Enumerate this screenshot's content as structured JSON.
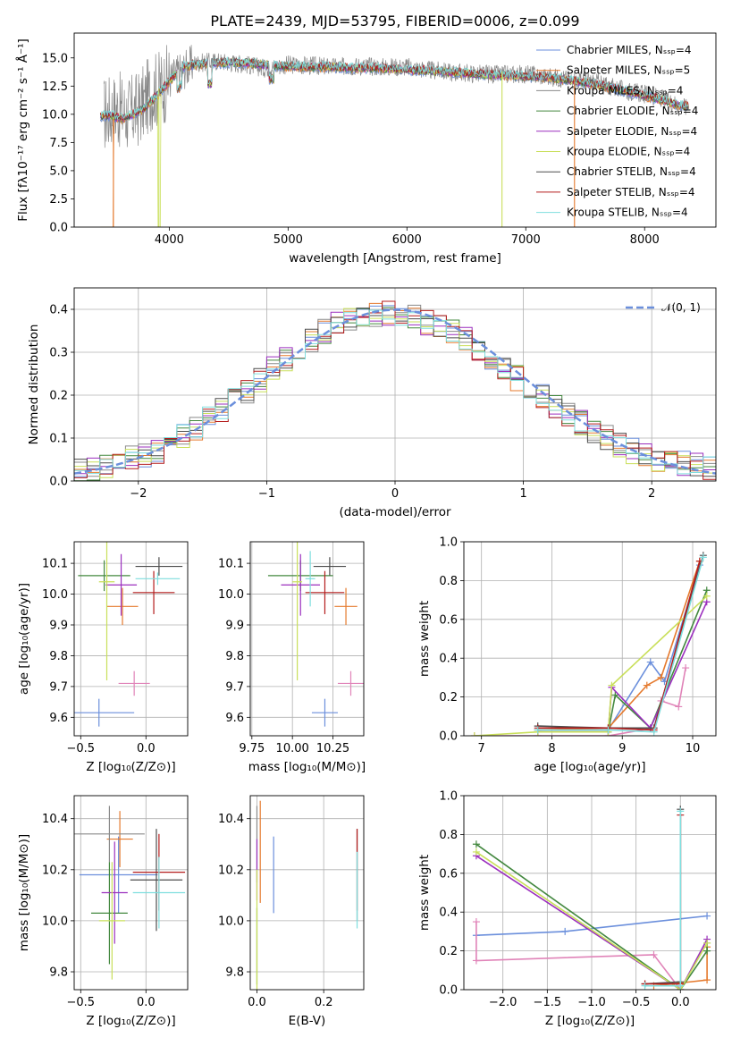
{
  "title": "PLATE=2439, MJD=53795, FIBERID=0006, z=0.099",
  "colors": [
    "#6b8fdc",
    "#e57a2e",
    "#8a8a8a",
    "#43883f",
    "#9b2fbe",
    "#c9df5a",
    "#4d4d4d",
    "#b41c1c",
    "#7fdede"
  ],
  "flux_color": "#888888",
  "pink_color": "#e083b8",
  "panels": {
    "spectrum": {
      "xlabel": "wavelength [Angstrom, rest frame]",
      "ylabel": "Flux [fλ10⁻¹⁷ erg cm⁻² s⁻¹ Å⁻¹]",
      "xlim": [
        3200,
        8600
      ],
      "ylim": [
        0,
        17.2
      ],
      "xticks": [
        "4000",
        "5000",
        "6000",
        "7000",
        "8000"
      ],
      "yticks": [
        "0.0",
        "2.5",
        "5.0",
        "7.5",
        "10.0",
        "12.5",
        "15.0"
      ],
      "legend": [
        "Chabrier MILES, Nₛₛₚ=4",
        "Salpeter MILES, Nₛₛₚ=5",
        "Kroupa MILES, Nₛₛₚ=4",
        "Chabrier ELODIE, Nₛₛₚ=4",
        "Salpeter ELODIE, Nₛₛₚ=4",
        "Kroupa ELODIE, Nₛₛₚ=4",
        "Chabrier STELIB, Nₛₛₚ=4",
        "Salpeter STELIB, Nₛₛₚ=4",
        "Kroupa STELIB, Nₛₛₚ=4"
      ]
    },
    "residual": {
      "xlabel": "(data-model)/error",
      "ylabel": "Normed distribution",
      "xlim": [
        -2.5,
        2.5
      ],
      "ylim": [
        0,
        0.45
      ],
      "xticks": [
        "−2",
        "−1",
        "0",
        "1",
        "2"
      ],
      "yticks": [
        "0.0",
        "0.1",
        "0.2",
        "0.3",
        "0.4"
      ],
      "legend": "𝒩(0, 1)"
    },
    "z_age": {
      "xlabel": "Z [log₁₀(Z/Z⊙)]",
      "ylabel": "age  [log₁₀(age/yr)]",
      "xlim": [
        -0.55,
        0.32
      ],
      "ylim": [
        9.54,
        10.17
      ],
      "xticks": [
        "−0.5",
        "0.0"
      ],
      "yticks": [
        "9.6",
        "9.7",
        "9.8",
        "9.9",
        "10.0",
        "10.1"
      ]
    },
    "mass_age": {
      "xlabel": "mass [log₁₀(M/M⊙)]",
      "ylabel": "",
      "xlim": [
        9.74,
        10.44
      ],
      "ylim": [
        9.54,
        10.17
      ],
      "xticks": [
        "9.75",
        "10.00",
        "10.25"
      ],
      "yticks": [
        "9.6",
        "9.7",
        "9.8",
        "9.9",
        "10.0",
        "10.1"
      ]
    },
    "age_weight": {
      "xlabel": "age  [log₁₀(age/yr)]",
      "ylabel": "mass weight",
      "xlim": [
        6.75,
        10.33
      ],
      "ylim": [
        0,
        1.0
      ],
      "xticks": [
        "7",
        "8",
        "9",
        "10"
      ],
      "yticks": [
        "0.0",
        "0.2",
        "0.4",
        "0.6",
        "0.8",
        "1.0"
      ]
    },
    "z_mass": {
      "xlabel": "Z [log₁₀(Z/Z⊙)]",
      "ylabel": "mass [log₁₀(M/M⊙)]",
      "xlim": [
        -0.55,
        0.32
      ],
      "ylim": [
        9.73,
        10.49
      ],
      "xticks": [
        "−0.5",
        "0.0"
      ],
      "yticks": [
        "9.8",
        "10.0",
        "10.2",
        "10.4"
      ]
    },
    "ebv_mass": {
      "xlabel": "E(B-V)",
      "ylabel": "",
      "xlim": [
        -0.02,
        0.32
      ],
      "ylim": [
        9.73,
        10.49
      ],
      "xticks": [
        "0.0",
        "0.2"
      ],
      "yticks": [
        "9.8",
        "10.0",
        "10.2",
        "10.4"
      ]
    },
    "z_weight": {
      "xlabel": "Z [log₁₀(Z/Z⊙)]",
      "ylabel": "mass weight",
      "xlim": [
        -2.44,
        0.4
      ],
      "ylim": [
        0,
        1.0
      ],
      "xticks": [
        "−2.0",
        "−1.5",
        "−1.0",
        "−0.5",
        "0.0"
      ],
      "yticks": [
        "0.0",
        "0.2",
        "0.4",
        "0.6",
        "0.8",
        "1.0"
      ]
    }
  },
  "chart_data": [
    {
      "type": "line",
      "title": "PLATE=2439, MJD=53795, FIBERID=0006, z=0.099",
      "xlabel": "wavelength [Angstrom, rest frame]",
      "ylabel": "Flux [fλ10⁻¹⁷ erg cm⁻² s⁻¹ Å⁻¹]",
      "xlim": [
        3200,
        8600
      ],
      "ylim": [
        0,
        17.2
      ],
      "observed": {
        "wavelength": [
          3450,
          3550,
          3650,
          3750,
          3850,
          3950,
          4050,
          4200,
          4400,
          4600,
          4800,
          5000,
          5200,
          5400,
          5600,
          5800,
          6000,
          6200,
          6400,
          6600,
          6800,
          7000,
          7200,
          7400,
          7600,
          7800,
          8000,
          8200,
          8350
        ],
        "flux": [
          10.0,
          10.5,
          10.0,
          10.5,
          12.0,
          12.5,
          13.5,
          14.5,
          14.7,
          14.5,
          14.1,
          14.4,
          14.3,
          14.2,
          14.3,
          14.2,
          14.2,
          13.9,
          13.7,
          13.6,
          13.5,
          13.6,
          13.3,
          13.1,
          12.8,
          12.2,
          11.8,
          11.2,
          10.6
        ]
      },
      "model": {
        "wavelength": [
          3420,
          3500,
          3600,
          3700,
          3800,
          3900,
          4000,
          4100,
          4300,
          4500,
          4700,
          4900,
          5100,
          5300,
          5500,
          5700,
          5900,
          6100,
          6300,
          6500,
          6700,
          6900,
          7100,
          7300,
          7500,
          7700,
          7900,
          8100,
          8300
        ],
        "flux": [
          9.8,
          9.9,
          9.6,
          10.0,
          10.6,
          11.7,
          12.9,
          14.2,
          14.5,
          14.6,
          14.5,
          14.3,
          14.2,
          14.2,
          14.1,
          14.1,
          14.0,
          13.9,
          13.8,
          13.6,
          13.5,
          13.4,
          13.3,
          13.1,
          12.8,
          12.4,
          11.9,
          11.4,
          10.8
        ]
      },
      "series": [
        {
          "name": "Chabrier MILES, Nₛₛₚ=4"
        },
        {
          "name": "Salpeter MILES, Nₛₛₚ=5"
        },
        {
          "name": "Kroupa MILES, Nₛₛₚ=4"
        },
        {
          "name": "Chabrier ELODIE, Nₛₛₚ=4"
        },
        {
          "name": "Salpeter ELODIE, Nₛₛₚ=4"
        },
        {
          "name": "Kroupa ELODIE, Nₛₛₚ=4"
        },
        {
          "name": "Chabrier STELIB, Nₛₛₚ=4"
        },
        {
          "name": "Salpeter STELIB, Nₛₛₚ=4"
        },
        {
          "name": "Kroupa STELIB, Nₛₛₚ=4"
        }
      ]
    },
    {
      "type": "line",
      "xlabel": "(data-model)/error",
      "ylabel": "Normed distribution",
      "xlim": [
        -2.5,
        2.5
      ],
      "ylim": [
        0,
        0.45
      ],
      "bin_edges": [
        -2.5,
        -2.4,
        -2.3,
        -2.2,
        -2.1,
        -2.0,
        -1.9,
        -1.8,
        -1.7,
        -1.6,
        -1.5,
        -1.4,
        -1.3,
        -1.2,
        -1.1,
        -1.0,
        -0.9,
        -0.8,
        -0.7,
        -0.6,
        -0.5,
        -0.4,
        -0.3,
        -0.2,
        -0.1,
        0.0,
        0.1,
        0.2,
        0.3,
        0.4,
        0.5,
        0.6,
        0.7,
        0.8,
        0.9,
        1.0,
        1.1,
        1.2,
        1.3,
        1.4,
        1.5,
        1.6,
        1.7,
        1.8,
        1.9,
        2.0,
        2.1,
        2.2,
        2.3,
        2.4,
        2.5
      ],
      "base_histogram": [
        0.03,
        0.03,
        0.035,
        0.045,
        0.055,
        0.06,
        0.07,
        0.085,
        0.105,
        0.125,
        0.145,
        0.165,
        0.19,
        0.21,
        0.235,
        0.26,
        0.285,
        0.31,
        0.33,
        0.35,
        0.365,
        0.375,
        0.385,
        0.39,
        0.39,
        0.385,
        0.38,
        0.37,
        0.36,
        0.345,
        0.33,
        0.31,
        0.29,
        0.265,
        0.24,
        0.22,
        0.2,
        0.175,
        0.155,
        0.135,
        0.115,
        0.1,
        0.085,
        0.07,
        0.06,
        0.05,
        0.045,
        0.04,
        0.035,
        0.03
      ],
      "series": [
        {
          "name": "𝒩(0, 1)",
          "mu": 0,
          "sigma": 1
        }
      ]
    },
    {
      "type": "scatter",
      "panel": "z_age",
      "points": [
        {
          "x": -0.36,
          "y": 9.615,
          "xerr": 0.27,
          "yerr": 0.045
        },
        {
          "x": -0.18,
          "y": 9.96,
          "xerr": 0.12,
          "yerr": 0.06
        },
        {
          "x": -0.09,
          "y": 9.71,
          "xerr": 0.12,
          "yerr": 0.04
        },
        {
          "x": -0.32,
          "y": 10.06,
          "xerr": 0.2,
          "yerr": 0.05
        },
        {
          "x": -0.19,
          "y": 10.03,
          "xerr": 0.12,
          "yerr": 0.1
        },
        {
          "x": -0.3,
          "y": 10.04,
          "xerr": 0.06,
          "yerr": 0.32
        },
        {
          "x": 0.1,
          "y": 10.09,
          "xerr": 0.18,
          "yerr": 0.03
        },
        {
          "x": 0.06,
          "y": 10.005,
          "xerr": 0.16,
          "yerr": 0.07
        },
        {
          "x": 0.09,
          "y": 10.05,
          "xerr": 0.17,
          "yerr": 0.02
        }
      ]
    },
    {
      "type": "scatter",
      "panel": "mass_age",
      "points": [
        {
          "x": 10.2,
          "y": 9.615,
          "xerr": 0.08,
          "yerr": 0.045
        },
        {
          "x": 10.33,
          "y": 9.96,
          "xerr": 0.07,
          "yerr": 0.06
        },
        {
          "x": 10.36,
          "y": 9.71,
          "xerr": 0.08,
          "yerr": 0.04
        },
        {
          "x": 10.05,
          "y": 10.06,
          "xerr": 0.2,
          "yerr": 0.05
        },
        {
          "x": 10.05,
          "y": 10.03,
          "xerr": 0.12,
          "yerr": 0.1
        },
        {
          "x": 10.03,
          "y": 10.04,
          "xerr": 0.03,
          "yerr": 0.32
        },
        {
          "x": 10.23,
          "y": 10.09,
          "xerr": 0.1,
          "yerr": 0.03
        },
        {
          "x": 10.2,
          "y": 10.005,
          "xerr": 0.12,
          "yerr": 0.07
        },
        {
          "x": 10.11,
          "y": 10.05,
          "xerr": 0.03,
          "yerr": 0.09
        }
      ]
    },
    {
      "type": "line",
      "panel": "age_weight",
      "series": [
        {
          "x": [
            7.8,
            8.8,
            9.4,
            9.6,
            10.1
          ],
          "y": [
            0.03,
            0.03,
            0.38,
            0.28,
            0.88
          ]
        },
        {
          "x": [
            7.8,
            8.8,
            9.35,
            9.55,
            10.1
          ],
          "y": [
            0.03,
            0.04,
            0.26,
            0.3,
            0.9
          ]
        },
        {
          "x": [
            6.9,
            7.8,
            8.8,
            9.45,
            9.55,
            9.8,
            9.9
          ],
          "y": [
            0.0,
            0.0,
            0.0,
            0.04,
            0.18,
            0.15,
            0.35
          ]
        },
        {
          "x": [
            7.8,
            8.8,
            8.9,
            9.4,
            10.2
          ],
          "y": [
            0.02,
            0.02,
            0.21,
            0.04,
            0.75
          ]
        },
        {
          "x": [
            7.8,
            8.8,
            8.85,
            9.4,
            10.2
          ],
          "y": [
            0.02,
            0.02,
            0.25,
            0.04,
            0.69
          ]
        },
        {
          "x": [
            6.9,
            7.8,
            8.8,
            8.85,
            10.2
          ],
          "y": [
            0.0,
            0.02,
            0.02,
            0.26,
            0.72
          ]
        },
        {
          "x": [
            7.8,
            8.8,
            9.45,
            10.15
          ],
          "y": [
            0.05,
            0.04,
            0.04,
            0.93
          ]
        },
        {
          "x": [
            7.8,
            8.8,
            9.45,
            10.1
          ],
          "y": [
            0.04,
            0.04,
            0.03,
            0.9
          ]
        },
        {
          "x": [
            7.8,
            8.8,
            9.45,
            10.15
          ],
          "y": [
            0.03,
            0.03,
            0.02,
            0.92
          ]
        }
      ]
    },
    {
      "type": "scatter",
      "panel": "z_mass",
      "points": [
        {
          "x": -0.21,
          "y": 10.18,
          "xerr": 0.3,
          "yerr": 0.15
        },
        {
          "x": -0.2,
          "y": 10.32,
          "xerr": 0.1,
          "yerr": 0.11
        },
        {
          "x": -0.28,
          "y": 10.34,
          "xerr": 0.27,
          "yerr": 0.11
        },
        {
          "x": -0.28,
          "y": 10.03,
          "xerr": 0.14,
          "yerr": 0.2
        },
        {
          "x": -0.24,
          "y": 10.11,
          "xerr": 0.1,
          "yerr": 0.2
        },
        {
          "x": -0.26,
          "y": 10.0,
          "xerr": 0.1,
          "yerr": 0.23
        },
        {
          "x": 0.08,
          "y": 10.16,
          "xerr": 0.2,
          "yerr": 0.2
        },
        {
          "x": 0.1,
          "y": 10.19,
          "xerr": 0.2,
          "yerr": 0.15
        },
        {
          "x": 0.1,
          "y": 10.11,
          "xerr": 0.2,
          "yerr": 0.14
        }
      ]
    },
    {
      "type": "scatter",
      "panel": "ebv_mass",
      "points": [
        {
          "x": 0.05,
          "y": 10.18,
          "xerr": 0,
          "yerr": 0.15
        },
        {
          "x": 0.01,
          "y": 10.27,
          "xerr": 0,
          "yerr": 0.2
        },
        {
          "x": 0.0,
          "y": 10.3,
          "xerr": 0,
          "yerr": 0.15
        },
        {
          "x": 0.0,
          "y": 9.9,
          "xerr": 0,
          "yerr": 0.15
        },
        {
          "x": 0.0,
          "y": 10.2,
          "xerr": 0,
          "yerr": 0.12
        },
        {
          "x": 0.0,
          "y": 9.95,
          "xerr": 0,
          "yerr": 0.25
        },
        {
          "x": 0.3,
          "y": 10.18,
          "xerr": 0,
          "yerr": 0.18
        },
        {
          "x": 0.3,
          "y": 10.2,
          "xerr": 0,
          "yerr": 0.16
        },
        {
          "x": 0.3,
          "y": 10.12,
          "xerr": 0,
          "yerr": 0.15
        }
      ]
    },
    {
      "type": "line",
      "panel": "z_weight",
      "series": [
        {
          "x": [
            -2.3,
            -1.3,
            0.3
          ],
          "y": [
            0.28,
            0.3,
            0.38
          ]
        },
        {
          "x": [
            -0.3,
            0.3,
            0.3
          ],
          "y": [
            0.02,
            0.05,
            0.22
          ]
        },
        {
          "x": [
            -2.3,
            -2.3,
            -0.3,
            0.0
          ],
          "y": [
            0.35,
            0.15,
            0.18,
            0.0
          ]
        },
        {
          "x": [
            -2.3,
            0.0,
            0.3,
            0.3
          ],
          "y": [
            0.75,
            0.0,
            0.2,
            0.24
          ]
        },
        {
          "x": [
            -2.3,
            0.0,
            0.3
          ],
          "y": [
            0.69,
            0.0,
            0.26
          ]
        },
        {
          "x": [
            -2.3,
            0.0,
            0.3
          ],
          "y": [
            0.71,
            0.0,
            0.24
          ]
        },
        {
          "x": [
            -0.4,
            0.0,
            0.0
          ],
          "y": [
            0.03,
            0.04,
            0.93
          ]
        },
        {
          "x": [
            -0.4,
            0.0,
            0.0
          ],
          "y": [
            0.03,
            0.03,
            0.9
          ]
        },
        {
          "x": [
            -0.4,
            0.0,
            0.0
          ],
          "y": [
            0.02,
            0.02,
            0.92
          ]
        }
      ]
    }
  ]
}
